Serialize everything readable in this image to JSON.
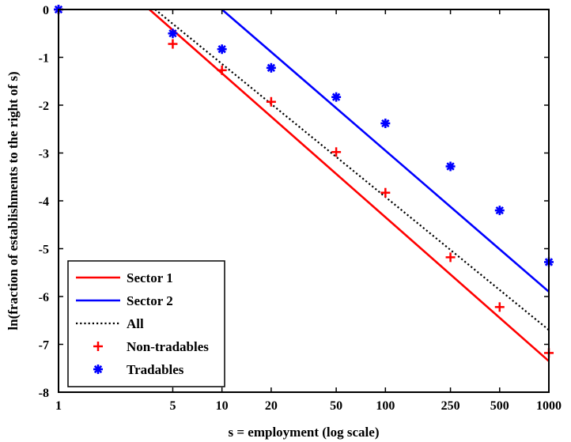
{
  "chart_data": {
    "type": "scatter",
    "xscale": "log",
    "xlabel": "s = employment (log scale)",
    "ylabel": "ln(fraction of establishments to the right of s)",
    "xlim": [
      1,
      1000
    ],
    "ylim": [
      -8,
      0
    ],
    "xticks": [
      1,
      5,
      10,
      20,
      50,
      100,
      250,
      500,
      1000
    ],
    "xtick_labels": [
      "1",
      "5",
      "10",
      "20",
      "50",
      "100",
      "250",
      "500",
      "1000"
    ],
    "yticks": [
      0,
      -1,
      -2,
      -3,
      -4,
      -5,
      -6,
      -7,
      -8
    ],
    "ytick_labels": [
      "0",
      "-1",
      "-2",
      "-3",
      "-4",
      "-5",
      "-6",
      "-7",
      "-8"
    ],
    "grid": false,
    "legend_position": "bottom-left",
    "series": [
      {
        "name": "Sector 1",
        "kind": "line",
        "style": "solid",
        "color": "#ff0000",
        "x": [
          3.6,
          1000
        ],
        "y": [
          0,
          -7.35
        ]
      },
      {
        "name": "Sector 2",
        "kind": "line",
        "style": "solid",
        "color": "#0000ff",
        "x": [
          10,
          1000
        ],
        "y": [
          0,
          -5.9
        ]
      },
      {
        "name": "All",
        "kind": "line",
        "style": "dotted",
        "color": "#000000",
        "x": [
          3.9,
          1000
        ],
        "y": [
          0,
          -6.7
        ]
      },
      {
        "name": "Non-tradables",
        "kind": "marker",
        "marker": "plus",
        "color": "#ff0000",
        "x": [
          1,
          5,
          10,
          20,
          50,
          100,
          250,
          500,
          1000
        ],
        "y": [
          0,
          -0.72,
          -1.27,
          -1.93,
          -2.98,
          -3.83,
          -5.18,
          -6.22,
          -7.18
        ]
      },
      {
        "name": "Tradables",
        "kind": "marker",
        "marker": "asterisk",
        "color": "#0000ff",
        "x": [
          1,
          5,
          10,
          20,
          50,
          100,
          250,
          500,
          1000
        ],
        "y": [
          0,
          -0.5,
          -0.83,
          -1.22,
          -1.83,
          -2.38,
          -3.28,
          -4.2,
          -5.28
        ]
      }
    ]
  }
}
